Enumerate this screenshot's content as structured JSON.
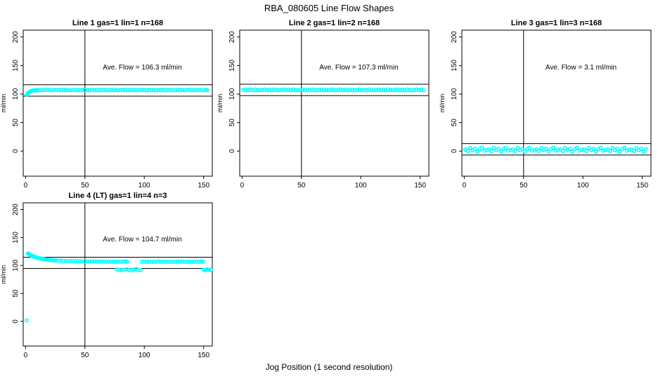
{
  "figure": {
    "title": "RBA_080605  Line Flow Shapes",
    "xlabel": "Jog Position (1 second resolution)",
    "ylabel": "ml/min",
    "point_color": "#00FFFF",
    "line_color": "#000000",
    "background_color": "#FFFFFF"
  },
  "chart_data": [
    {
      "type": "scatter",
      "title": "Line 1 gas=1 lin=1 n=168",
      "annotation": "Ave. Flow =  106.3  ml/min",
      "ave_flow": 106.3,
      "n": 168,
      "xlim": [
        -2,
        157.3
      ],
      "ylim": [
        -44,
        212
      ],
      "x_ticks": [
        0,
        50,
        100,
        150
      ],
      "y_ticks": [
        0,
        50,
        100,
        150,
        200
      ],
      "vline_x": 50,
      "hlines": [
        116.3,
        96.3
      ],
      "points": [
        [
          1,
          99.3
        ],
        [
          1.5,
          100.4
        ],
        [
          2,
          101.4
        ],
        [
          2.5,
          102.3
        ],
        [
          3,
          103.1
        ],
        [
          3.5,
          103.9
        ],
        [
          4,
          104.5
        ],
        [
          4.5,
          105.0
        ],
        [
          5,
          105.4
        ],
        [
          5.5,
          105.8
        ],
        [
          6,
          106.1
        ],
        [
          7,
          106.4
        ],
        [
          8,
          106.6
        ],
        [
          9,
          106.8
        ],
        [
          10,
          106.9
        ],
        [
          12,
          107.1
        ],
        [
          14,
          106.6
        ],
        [
          16,
          107.4
        ],
        [
          18,
          106.9
        ],
        [
          20,
          107.2
        ],
        [
          22,
          106.5
        ],
        [
          24,
          107.5
        ],
        [
          26,
          107.0
        ],
        [
          28,
          107.1
        ],
        [
          30,
          106.6
        ],
        [
          32,
          107.4
        ],
        [
          34,
          106.9
        ],
        [
          36,
          107.2
        ],
        [
          38,
          106.5
        ],
        [
          40,
          107.5
        ],
        [
          42,
          107.0
        ],
        [
          44,
          107.1
        ],
        [
          46,
          106.6
        ],
        [
          48,
          107.4
        ],
        [
          50,
          106.9
        ],
        [
          52,
          107.2
        ],
        [
          54,
          106.5
        ],
        [
          56,
          107.5
        ],
        [
          58,
          107.0
        ],
        [
          60,
          107.1
        ],
        [
          62,
          106.6
        ],
        [
          64,
          107.4
        ],
        [
          66,
          106.9
        ],
        [
          68,
          107.2
        ],
        [
          70,
          106.5
        ],
        [
          72,
          107.5
        ],
        [
          74,
          107.0
        ],
        [
          76,
          107.1
        ],
        [
          78,
          106.6
        ],
        [
          80,
          107.4
        ],
        [
          82,
          106.9
        ],
        [
          84,
          107.2
        ],
        [
          86,
          106.5
        ],
        [
          88,
          107.5
        ],
        [
          90,
          107.0
        ],
        [
          92,
          107.1
        ],
        [
          94,
          106.6
        ],
        [
          96,
          107.4
        ],
        [
          98,
          106.9
        ],
        [
          100,
          107.2
        ],
        [
          102,
          106.5
        ],
        [
          104,
          107.5
        ],
        [
          106,
          107.0
        ],
        [
          108,
          107.1
        ],
        [
          110,
          106.6
        ],
        [
          112,
          107.4
        ],
        [
          114,
          106.9
        ],
        [
          116,
          107.2
        ],
        [
          118,
          106.5
        ],
        [
          120,
          107.5
        ],
        [
          122,
          107.0
        ],
        [
          124,
          107.1
        ],
        [
          126,
          106.6
        ],
        [
          128,
          107.4
        ],
        [
          130,
          106.9
        ],
        [
          132,
          107.2
        ],
        [
          134,
          106.5
        ],
        [
          136,
          107.5
        ],
        [
          138,
          107.0
        ],
        [
          140,
          107.1
        ],
        [
          142,
          106.6
        ],
        [
          144,
          107.4
        ],
        [
          146,
          106.9
        ],
        [
          148,
          107.2
        ],
        [
          150,
          106.5
        ],
        [
          152,
          107.5
        ],
        [
          153,
          107.0
        ]
      ]
    },
    {
      "type": "scatter",
      "title": "Line 2 gas=1 lin=2 n=168",
      "annotation": "Ave. Flow =  107.3  ml/min",
      "ave_flow": 107.3,
      "n": 168,
      "xlim": [
        -2,
        157.3
      ],
      "ylim": [
        -44,
        212
      ],
      "x_ticks": [
        0,
        50,
        100,
        150
      ],
      "y_ticks": [
        0,
        50,
        100,
        150,
        200
      ],
      "vline_x": 50,
      "hlines": [
        117.3,
        97.3
      ],
      "points": [
        [
          1,
          107.2
        ],
        [
          3,
          107.8
        ],
        [
          5,
          106.8
        ],
        [
          7,
          107.5
        ],
        [
          9,
          106.6
        ],
        [
          11,
          107.9
        ],
        [
          13,
          107.1
        ],
        [
          15,
          106.7
        ],
        [
          17,
          107.2
        ],
        [
          19,
          107.8
        ],
        [
          21,
          106.8
        ],
        [
          23,
          107.5
        ],
        [
          25,
          106.6
        ],
        [
          27,
          107.9
        ],
        [
          29,
          107.1
        ],
        [
          31,
          106.7
        ],
        [
          33,
          107.2
        ],
        [
          35,
          107.8
        ],
        [
          37,
          106.8
        ],
        [
          39,
          107.5
        ],
        [
          41,
          106.6
        ],
        [
          43,
          107.9
        ],
        [
          45,
          107.1
        ],
        [
          47,
          106.7
        ],
        [
          49,
          107.2
        ],
        [
          51,
          107.8
        ],
        [
          53,
          106.8
        ],
        [
          55,
          107.5
        ],
        [
          57,
          106.6
        ],
        [
          59,
          107.9
        ],
        [
          61,
          107.1
        ],
        [
          63,
          106.7
        ],
        [
          65,
          107.2
        ],
        [
          67,
          107.8
        ],
        [
          69,
          106.8
        ],
        [
          71,
          107.5
        ],
        [
          73,
          106.6
        ],
        [
          75,
          107.9
        ],
        [
          77,
          107.1
        ],
        [
          79,
          106.7
        ],
        [
          81,
          107.2
        ],
        [
          83,
          107.8
        ],
        [
          85,
          106.8
        ],
        [
          87,
          107.5
        ],
        [
          89,
          106.6
        ],
        [
          91,
          107.9
        ],
        [
          93,
          107.1
        ],
        [
          95,
          106.7
        ],
        [
          97,
          107.2
        ],
        [
          99,
          107.8
        ],
        [
          101,
          106.8
        ],
        [
          103,
          107.5
        ],
        [
          105,
          106.6
        ],
        [
          107,
          107.9
        ],
        [
          109,
          107.1
        ],
        [
          111,
          106.7
        ],
        [
          113,
          107.2
        ],
        [
          115,
          107.8
        ],
        [
          117,
          106.8
        ],
        [
          119,
          107.5
        ],
        [
          121,
          106.6
        ],
        [
          123,
          107.9
        ],
        [
          125,
          107.1
        ],
        [
          127,
          106.7
        ],
        [
          129,
          107.2
        ],
        [
          131,
          107.8
        ],
        [
          133,
          106.8
        ],
        [
          135,
          107.5
        ],
        [
          137,
          106.6
        ],
        [
          139,
          107.9
        ],
        [
          141,
          107.1
        ],
        [
          143,
          106.7
        ],
        [
          145,
          107.2
        ],
        [
          147,
          107.8
        ],
        [
          149,
          106.8
        ],
        [
          151,
          107.5
        ],
        [
          153,
          106.6
        ]
      ]
    },
    {
      "type": "scatter",
      "title": "Line 3 gas=1 lin=3 n=168",
      "annotation": "Ave. Flow =  3.1  ml/min",
      "ave_flow": 3.1,
      "n": 168,
      "xlim": [
        -2,
        157.3
      ],
      "ylim": [
        -44,
        212
      ],
      "x_ticks": [
        0,
        50,
        100,
        150
      ],
      "y_ticks": [
        0,
        50,
        100,
        150,
        200
      ],
      "vline_x": 50,
      "hlines": [
        13.1,
        -6.9
      ],
      "points": [
        [
          1,
          2.8
        ],
        [
          3,
          0.2
        ],
        [
          5,
          5.2
        ],
        [
          7,
          1.5
        ],
        [
          9,
          4.0
        ],
        [
          11,
          -1.0
        ],
        [
          13,
          3.4
        ],
        [
          15,
          5.8
        ],
        [
          17,
          0.8
        ],
        [
          19,
          2.2
        ],
        [
          21,
          2.8
        ],
        [
          23,
          0.2
        ],
        [
          25,
          5.2
        ],
        [
          27,
          1.5
        ],
        [
          29,
          4.0
        ],
        [
          31,
          -1.0
        ],
        [
          33,
          3.4
        ],
        [
          35,
          5.8
        ],
        [
          37,
          0.8
        ],
        [
          39,
          2.2
        ],
        [
          41,
          2.8
        ],
        [
          43,
          0.2
        ],
        [
          45,
          5.2
        ],
        [
          47,
          1.5
        ],
        [
          49,
          4.0
        ],
        [
          51,
          -1.0
        ],
        [
          53,
          3.4
        ],
        [
          55,
          5.8
        ],
        [
          57,
          0.8
        ],
        [
          59,
          2.2
        ],
        [
          61,
          2.8
        ],
        [
          63,
          0.2
        ],
        [
          65,
          5.2
        ],
        [
          67,
          1.5
        ],
        [
          69,
          4.0
        ],
        [
          71,
          -1.0
        ],
        [
          73,
          3.4
        ],
        [
          75,
          5.8
        ],
        [
          77,
          0.8
        ],
        [
          79,
          2.2
        ],
        [
          81,
          2.8
        ],
        [
          83,
          0.2
        ],
        [
          85,
          5.2
        ],
        [
          87,
          1.5
        ],
        [
          89,
          4.0
        ],
        [
          91,
          -1.0
        ],
        [
          93,
          3.4
        ],
        [
          95,
          5.8
        ],
        [
          97,
          0.8
        ],
        [
          99,
          2.2
        ],
        [
          101,
          2.8
        ],
        [
          103,
          0.2
        ],
        [
          105,
          5.2
        ],
        [
          107,
          1.5
        ],
        [
          109,
          4.0
        ],
        [
          111,
          -1.0
        ],
        [
          113,
          3.4
        ],
        [
          115,
          5.8
        ],
        [
          117,
          0.8
        ],
        [
          119,
          2.2
        ],
        [
          121,
          2.8
        ],
        [
          123,
          0.2
        ],
        [
          125,
          5.2
        ],
        [
          127,
          1.5
        ],
        [
          129,
          4.0
        ],
        [
          131,
          -1.0
        ],
        [
          133,
          3.4
        ],
        [
          135,
          5.8
        ],
        [
          137,
          0.8
        ],
        [
          139,
          2.2
        ],
        [
          141,
          2.8
        ],
        [
          143,
          0.2
        ],
        [
          145,
          5.2
        ],
        [
          147,
          1.5
        ],
        [
          149,
          4.0
        ],
        [
          151,
          -1.0
        ],
        [
          153,
          3.4
        ]
      ]
    },
    {
      "type": "scatter",
      "title": "Line 4 (LT) gas=1 lin=4 n=3",
      "annotation": "Ave. Flow =  104.7  ml/min",
      "ave_flow": 104.7,
      "n": 3,
      "xlim": [
        -2,
        157.3
      ],
      "ylim": [
        -44,
        212
      ],
      "x_ticks": [
        0,
        50,
        100,
        150
      ],
      "y_ticks": [
        0,
        50,
        100,
        150,
        200
      ],
      "vline_x": 50,
      "hlines": [
        114.7,
        94.7
      ],
      "points": [
        [
          1,
          2
        ],
        [
          2,
          121.5
        ],
        [
          2.6,
          120.8
        ],
        [
          3.2,
          120.0
        ],
        [
          3.8,
          119.2
        ],
        [
          4.4,
          118.5
        ],
        [
          5,
          117.8
        ],
        [
          5.6,
          117.2
        ],
        [
          6.2,
          116.6
        ],
        [
          7,
          115.9
        ],
        [
          8,
          115.2
        ],
        [
          9,
          114.5
        ],
        [
          10,
          113.9
        ],
        [
          11,
          113.4
        ],
        [
          12,
          112.9
        ],
        [
          13,
          112.4
        ],
        [
          14,
          112.0
        ],
        [
          15,
          111.6
        ],
        [
          16,
          111.2
        ],
        [
          17,
          110.9
        ],
        [
          18,
          110.6
        ],
        [
          19,
          110.3
        ],
        [
          20,
          110.0
        ],
        [
          21.5,
          109.7
        ],
        [
          23,
          109.4
        ],
        [
          24.5,
          109.1
        ],
        [
          26,
          108.9
        ],
        [
          28,
          108.6
        ],
        [
          30,
          108.4
        ],
        [
          32,
          108.2
        ],
        [
          34,
          108.0
        ],
        [
          36,
          107.9
        ],
        [
          38,
          107.8
        ],
        [
          40,
          107.7
        ],
        [
          42,
          107.6
        ],
        [
          44,
          107.5
        ],
        [
          46,
          107.4
        ],
        [
          48,
          107.4
        ],
        [
          50,
          107.3
        ],
        [
          52,
          107.2
        ],
        [
          54,
          107.2
        ],
        [
          56,
          107.1
        ],
        [
          58,
          107.1
        ],
        [
          60,
          107.0
        ],
        [
          62,
          107.0
        ],
        [
          64,
          106.9
        ],
        [
          66,
          106.9
        ],
        [
          68,
          106.8
        ],
        [
          70,
          106.8
        ],
        [
          72,
          106.8
        ],
        [
          74,
          106.7
        ],
        [
          76,
          106.7
        ],
        [
          78,
          106.7
        ],
        [
          80,
          106.8
        ],
        [
          82,
          106.9
        ],
        [
          84,
          107.0
        ],
        [
          85.5,
          107.1
        ],
        [
          77,
          92.8
        ],
        [
          79,
          92.0
        ],
        [
          81,
          91.5
        ],
        [
          83,
          92.3
        ],
        [
          85,
          93.0
        ],
        [
          87,
          92.0
        ],
        [
          89,
          91.3
        ],
        [
          91,
          92.6
        ],
        [
          93,
          93.2
        ],
        [
          95,
          92.1
        ],
        [
          97,
          91.8
        ],
        [
          98,
          106.6
        ],
        [
          100,
          107.0
        ],
        [
          102,
          106.5
        ],
        [
          104,
          106.9
        ],
        [
          106,
          106.4
        ],
        [
          108,
          106.8
        ],
        [
          110,
          106.6
        ],
        [
          112,
          107.0
        ],
        [
          114,
          106.6
        ],
        [
          116,
          107.0
        ],
        [
          118,
          106.5
        ],
        [
          120,
          106.9
        ],
        [
          122,
          106.4
        ],
        [
          124,
          106.8
        ],
        [
          126,
          106.6
        ],
        [
          128,
          107.0
        ],
        [
          130,
          106.6
        ],
        [
          132,
          107.0
        ],
        [
          134,
          106.5
        ],
        [
          136,
          106.9
        ],
        [
          138,
          106.4
        ],
        [
          140,
          106.8
        ],
        [
          142,
          106.6
        ],
        [
          144,
          107.0
        ],
        [
          146,
          106.6
        ],
        [
          148,
          107.0
        ],
        [
          149.5,
          106.7
        ],
        [
          150,
          92.3
        ],
        [
          151.5,
          91.4
        ],
        [
          153,
          92.8
        ],
        [
          154.5,
          91.8
        ],
        [
          156,
          92.3
        ]
      ]
    }
  ]
}
